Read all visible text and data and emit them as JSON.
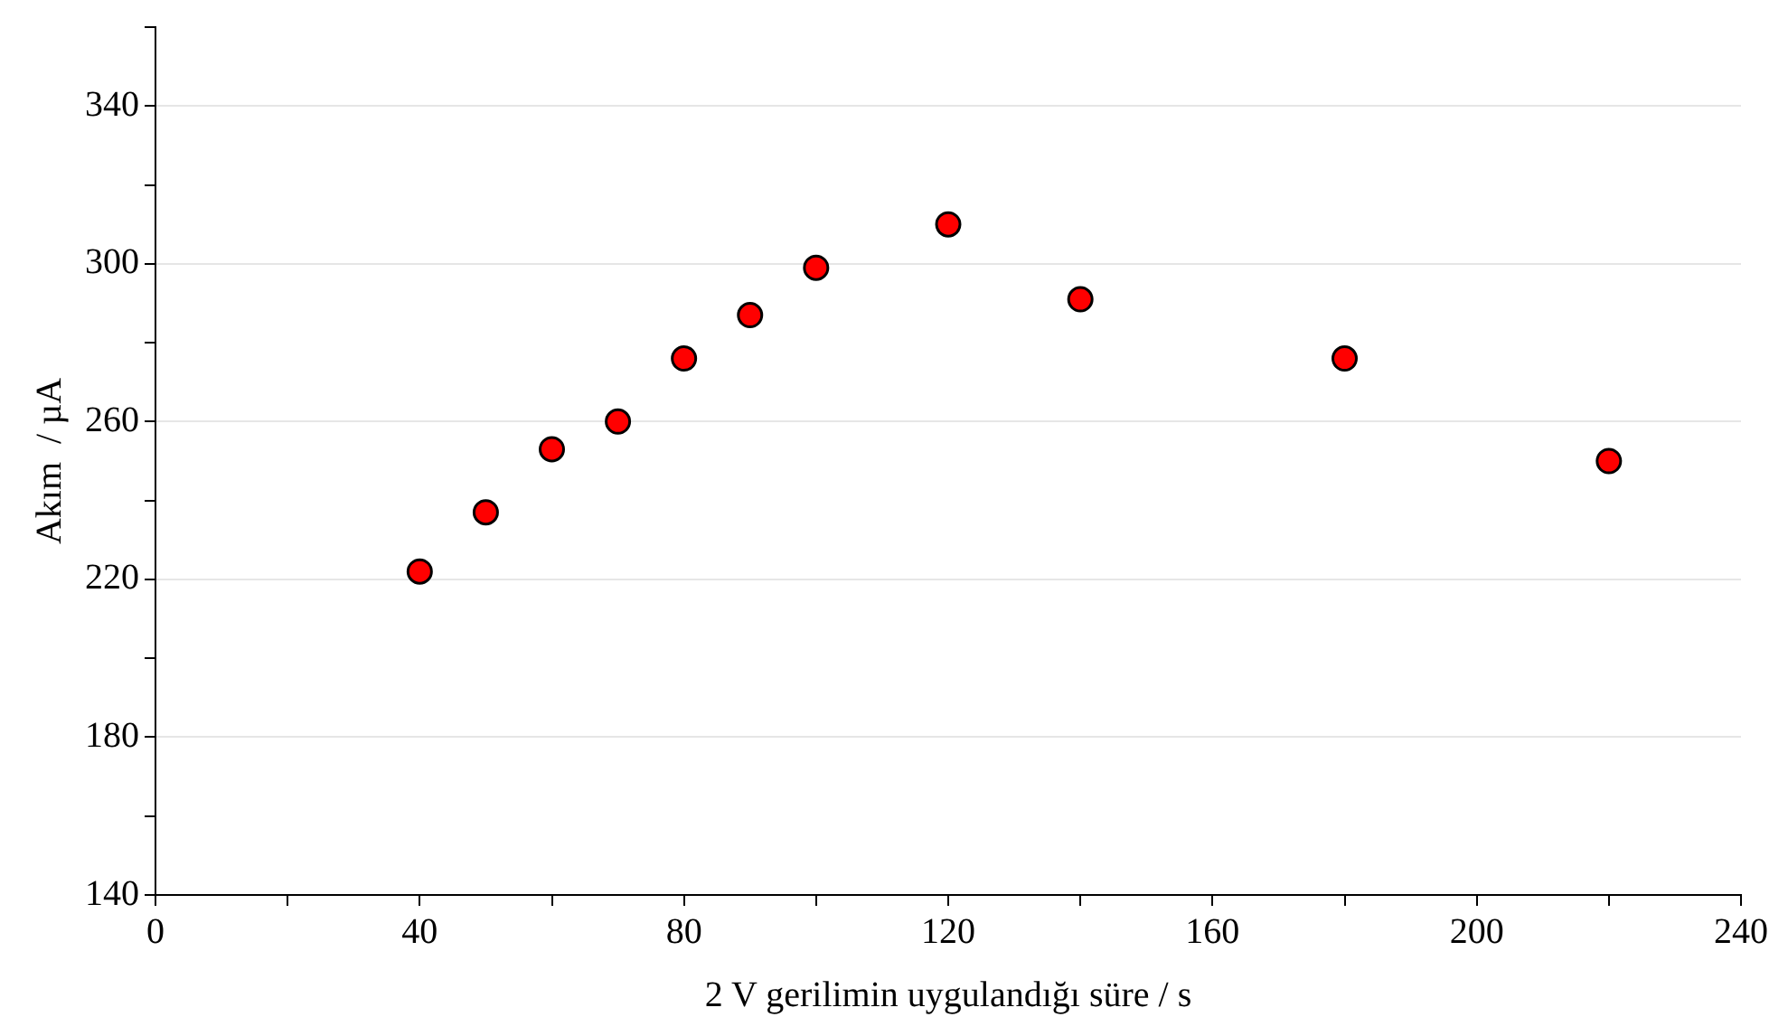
{
  "chart_data": {
    "type": "scatter",
    "xlabel": "2 V gerilimin uygulandığı süre / s",
    "ylabel": "Akım  / µA",
    "x": [
      40,
      50,
      60,
      70,
      80,
      90,
      100,
      120,
      140,
      180,
      220
    ],
    "series": [
      {
        "color": "#ff0000",
        "values": [
          222,
          237,
          253,
          260,
          276,
          287,
          299,
          310,
          291,
          276,
          250
        ]
      }
    ],
    "xlim": [
      0,
      240
    ],
    "xticks": [
      0,
      {
        "value": 20,
        "label": null
      },
      40,
      {
        "value": 60,
        "label": null
      },
      80,
      {
        "value": 100,
        "label": null
      },
      120,
      {
        "value": 140,
        "label": null
      },
      160,
      {
        "value": 180,
        "label": null
      },
      200,
      {
        "value": 220,
        "label": null
      },
      240
    ],
    "ylim": [
      140,
      360
    ],
    "yticks": [
      140,
      {
        "value": 160,
        "label": null
      },
      180,
      {
        "value": 200,
        "label": null
      },
      220,
      {
        "value": 240,
        "label": null
      },
      260,
      {
        "value": 280,
        "label": null
      },
      300,
      {
        "value": 320,
        "label": null
      },
      340,
      {
        "value": 360,
        "label": null
      }
    ],
    "grid": "y",
    "marker": "circle",
    "legend": false
  }
}
